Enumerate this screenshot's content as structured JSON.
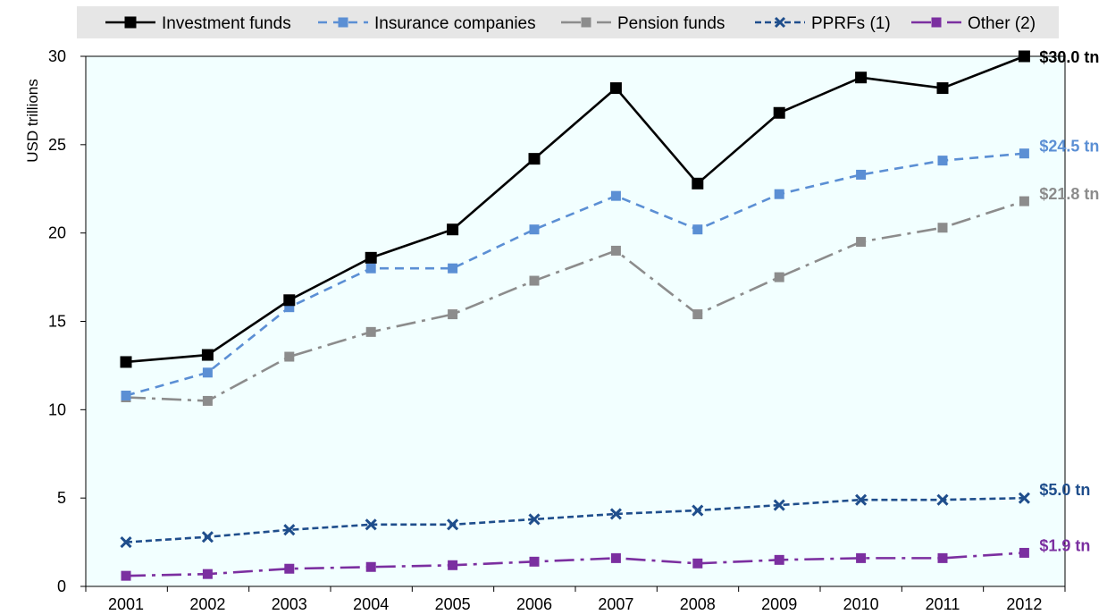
{
  "chart_data": {
    "type": "line",
    "title": "",
    "xlabel": "",
    "ylabel": "USD  trillions",
    "x": [
      "2001",
      "2002",
      "2003",
      "2004",
      "2005",
      "2006",
      "2007",
      "2008",
      "2009",
      "2010",
      "2011",
      "2012"
    ],
    "yticks": [
      "0",
      "5",
      "10",
      "15",
      "20",
      "25",
      "30"
    ],
    "ylim": [
      0,
      30
    ],
    "grid": false,
    "legend_position": "top",
    "series": [
      {
        "name": "Investment funds",
        "color": "#000000",
        "dash": "solid",
        "marker": "square",
        "values": [
          12.7,
          13.1,
          16.2,
          18.6,
          20.2,
          24.2,
          28.2,
          22.8,
          26.8,
          28.8,
          28.2,
          30.0
        ],
        "end_label": "$30.0 tn"
      },
      {
        "name": "Insurance companies",
        "color": "#5b8fd4",
        "dash": "dashed",
        "marker": "square",
        "values": [
          10.8,
          12.1,
          15.8,
          18.0,
          18.0,
          20.2,
          22.1,
          20.2,
          22.2,
          23.3,
          24.1,
          24.5
        ],
        "end_label": "$24.5 tn"
      },
      {
        "name": "Pension funds",
        "color": "#8c8c8c",
        "dash": "dashdot",
        "marker": "square",
        "values": [
          10.7,
          10.5,
          13.0,
          14.4,
          15.4,
          17.3,
          19.0,
          15.4,
          17.5,
          19.5,
          20.3,
          21.8
        ],
        "end_label": "$21.8 tn"
      },
      {
        "name": "PPRFs (1)",
        "color": "#1f4e8c",
        "dash": "dashed-small",
        "marker": "x",
        "values": [
          2.5,
          2.8,
          3.2,
          3.5,
          3.5,
          3.8,
          4.1,
          4.3,
          4.6,
          4.9,
          4.9,
          5.0
        ],
        "end_label": "$5.0 tn"
      },
      {
        "name": "Other (2)",
        "color": "#7b2fa0",
        "dash": "dashdot",
        "marker": "square",
        "values": [
          0.6,
          0.7,
          1.0,
          1.1,
          1.2,
          1.4,
          1.6,
          1.3,
          1.5,
          1.6,
          1.6,
          1.9
        ],
        "end_label": "$1.9 tn"
      }
    ]
  }
}
